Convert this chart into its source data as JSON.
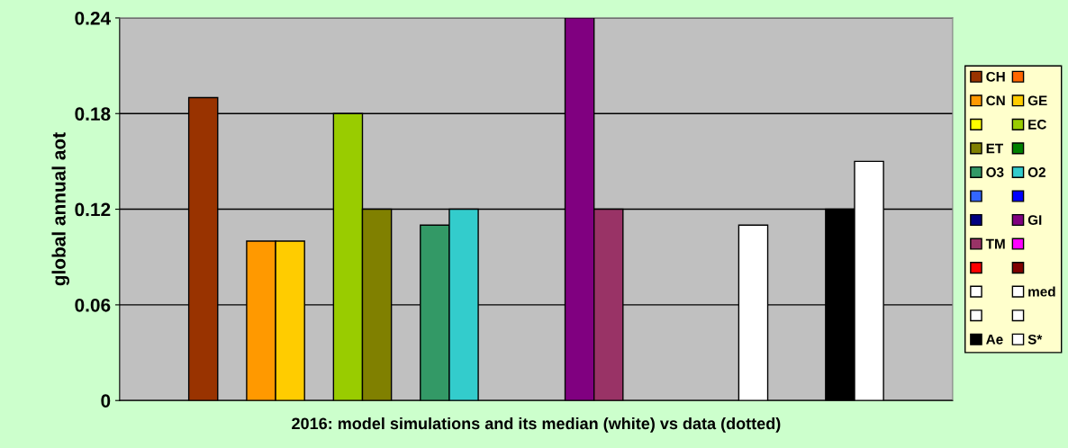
{
  "chart_data": {
    "type": "bar",
    "xlabel": "2016: model simulations and its median (white) vs data (dotted)",
    "ylabel": "global annual aot",
    "categories": [
      null
    ],
    "ylim": [
      0,
      0.24
    ],
    "yticks": [
      0,
      0.06,
      0.12,
      0.18,
      0.24
    ],
    "grid": "y",
    "legend": "right",
    "series": [
      {
        "name": "CH",
        "color": "#993300",
        "values": [
          0.19
        ]
      },
      {
        "color": "#ff6600",
        "values": [
          null
        ]
      },
      {
        "name": "CN",
        "color": "#ff9900",
        "values": [
          0.1
        ]
      },
      {
        "name": "GE",
        "color": "#ffcc00",
        "values": [
          0.1
        ]
      },
      {
        "color": "#ffff00",
        "values": [
          null
        ]
      },
      {
        "name": "EC",
        "color": "#99cc00",
        "values": [
          0.18
        ]
      },
      {
        "name": "ET",
        "color": "#808000",
        "values": [
          0.12
        ]
      },
      {
        "color": "#008000",
        "values": [
          null
        ]
      },
      {
        "name": "O3",
        "color": "#339966",
        "values": [
          0.11
        ]
      },
      {
        "name": "O2",
        "color": "#33cccc",
        "values": [
          0.12
        ]
      },
      {
        "color": "#3366ff",
        "values": [
          null
        ]
      },
      {
        "color": "#0000ff",
        "values": [
          null
        ]
      },
      {
        "color": "#000080",
        "values": [
          null
        ]
      },
      {
        "name": "GI",
        "color": "#800080",
        "values": [
          0.24
        ]
      },
      {
        "name": "TM",
        "color": "#993366",
        "values": [
          0.12
        ]
      },
      {
        "color": "#ff00ff",
        "values": [
          null
        ]
      },
      {
        "color": "#ff0000",
        "values": [
          null
        ]
      },
      {
        "color": "#800000",
        "values": [
          null
        ]
      },
      {
        "color": "#ffffff",
        "values": [
          null
        ]
      },
      {
        "name": "med",
        "color": "#ffffff",
        "values": [
          0.11
        ]
      },
      {
        "color": "#ffffff",
        "values": [
          null
        ]
      },
      {
        "color": "#ffffff",
        "values": [
          null
        ]
      },
      {
        "name": "Ae",
        "color": "#000000",
        "values": [
          0.12
        ]
      },
      {
        "name": "S*",
        "color": "#ffffff",
        "values": [
          0.15
        ]
      }
    ]
  }
}
